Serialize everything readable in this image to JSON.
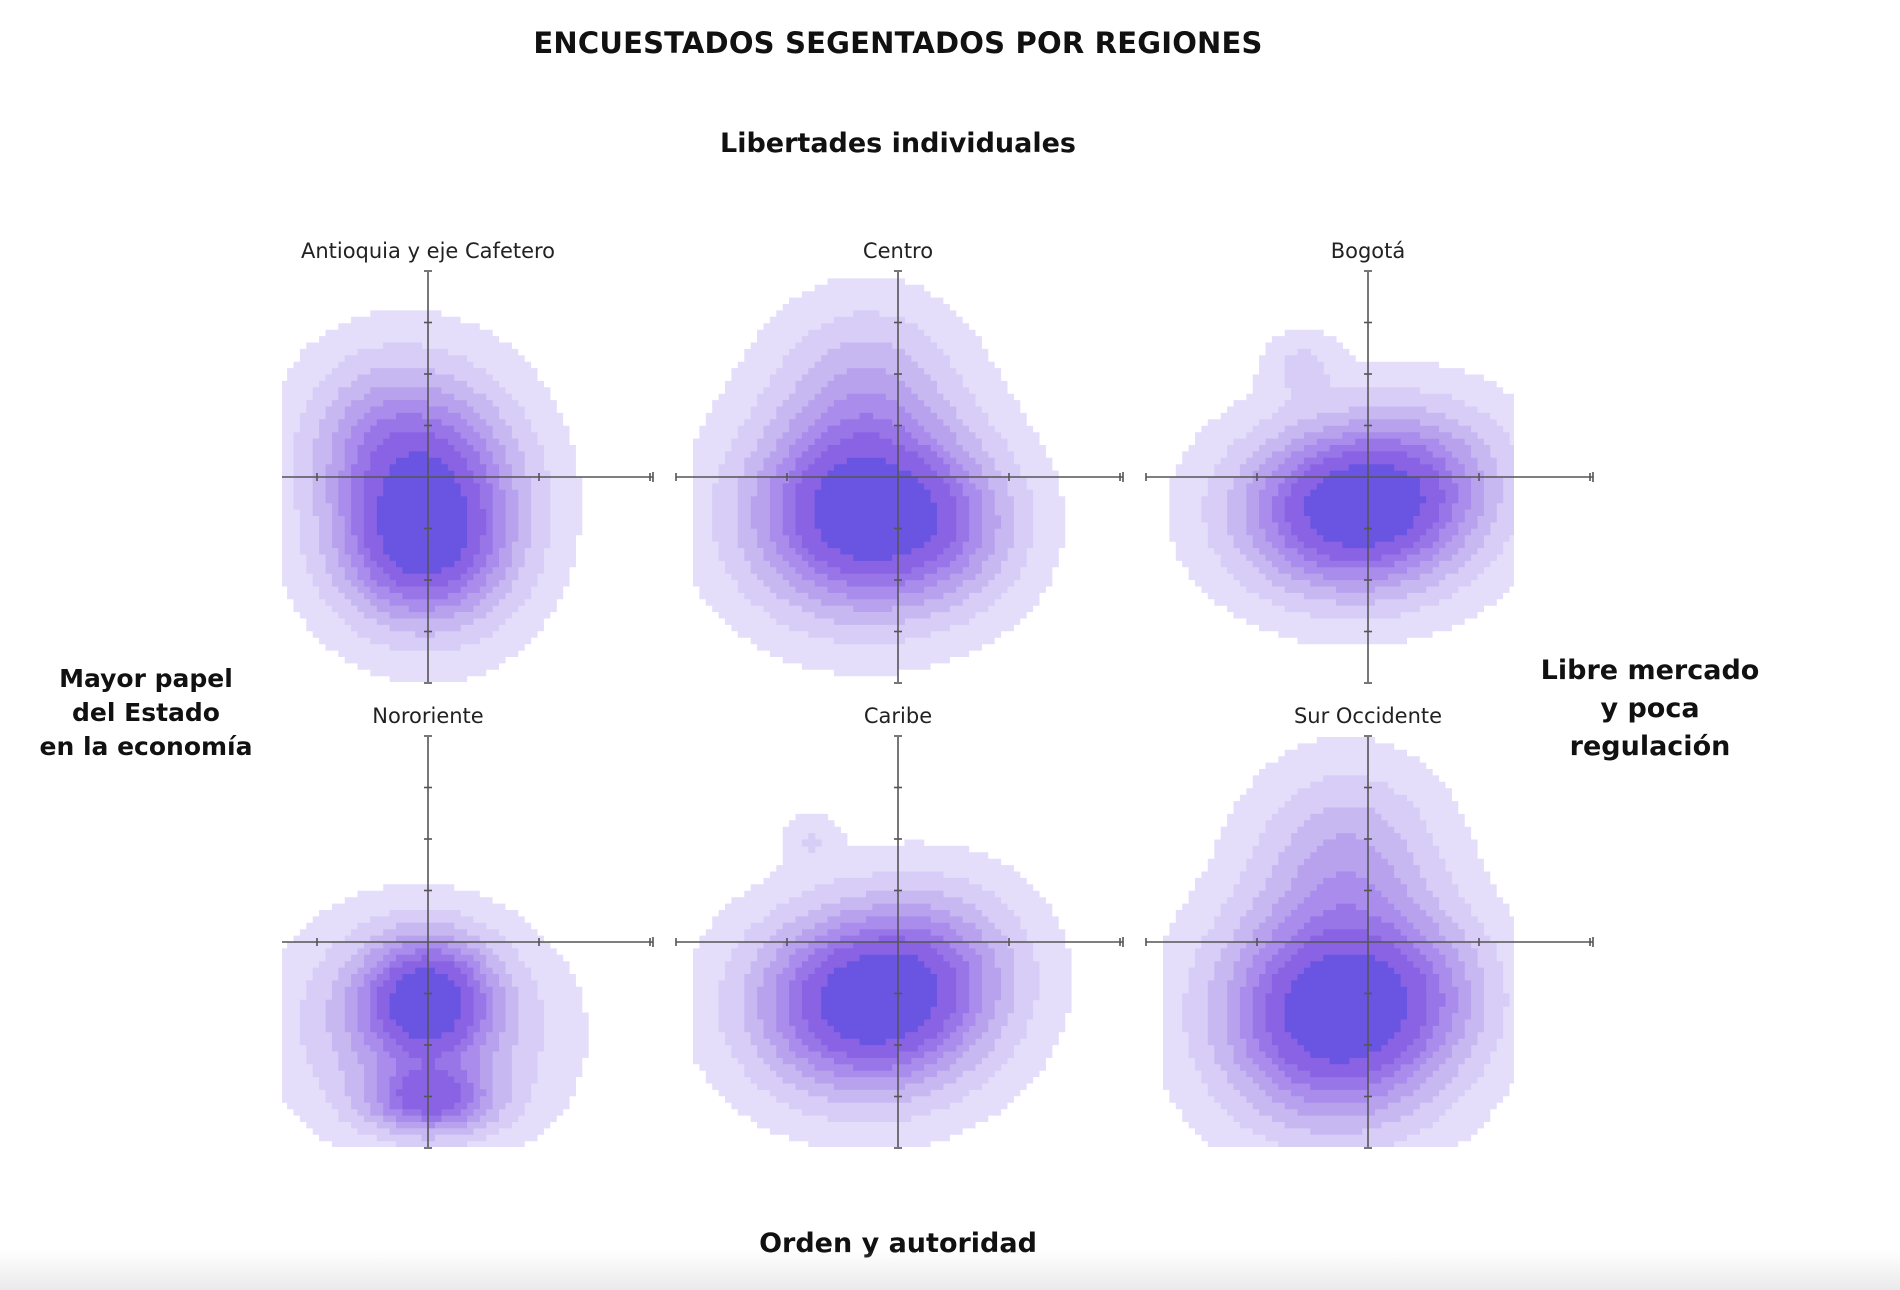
{
  "chart_data": {
    "type": "density_contour_grid",
    "title": "ENCUESTADOS SEGENTADOS POR REGIONES",
    "axis_labels": {
      "top": "Libertades individuales",
      "bottom": "Orden y autoridad",
      "left": "Mayor papel\ndel Estado\nen la economía",
      "right": "Libre mercado\ny poca\nregulación"
    },
    "colors": [
      "#e4defb",
      "#d7cdf6",
      "#c8b8f2",
      "#b8a2ee",
      "#a98ceb",
      "#9876e8",
      "#8a63e4",
      "#6a55e2"
    ],
    "panels": [
      {
        "name": "Antioquia y eje Cafetero",
        "peaks": [
          {
            "x": 0.0,
            "y": -0.45,
            "sx": 1.25,
            "sy": 1.5,
            "w": 1.0
          },
          {
            "x": -0.2,
            "y": -1.6,
            "sx": 1.1,
            "sy": 0.85,
            "w": 0.35
          },
          {
            "x": -1.2,
            "y": 0.9,
            "sx": 1.0,
            "sy": 1.1,
            "w": 0.22
          }
        ]
      },
      {
        "name": "Centro",
        "peaks": [
          {
            "x": -0.7,
            "y": -0.7,
            "sx": 1.5,
            "sy": 1.3,
            "w": 1.0
          },
          {
            "x": -0.6,
            "y": 1.9,
            "sx": 1.2,
            "sy": 1.1,
            "w": 0.28
          },
          {
            "x": 1.1,
            "y": -1.0,
            "sx": 1.0,
            "sy": 1.0,
            "w": 0.22
          }
        ]
      },
      {
        "name": "Bogotá",
        "peaks": [
          {
            "x": -0.3,
            "y": -0.65,
            "sx": 1.5,
            "sy": 1.1,
            "w": 1.0
          },
          {
            "x": -1.3,
            "y": 2.2,
            "sx": 0.5,
            "sy": 0.45,
            "w": 0.16
          },
          {
            "x": 1.2,
            "y": 0.2,
            "sx": 1.2,
            "sy": 1.0,
            "w": 0.25
          }
        ]
      },
      {
        "name": "Nororiente",
        "peaks": [
          {
            "x": 0.0,
            "y": -1.1,
            "sx": 0.85,
            "sy": 0.85,
            "w": 1.0
          },
          {
            "x": 0.05,
            "y": -3.1,
            "sx": 0.85,
            "sy": 0.45,
            "w": 0.75
          },
          {
            "x": -1.2,
            "y": -1.6,
            "sx": 1.2,
            "sy": 1.3,
            "w": 0.3
          },
          {
            "x": 0.9,
            "y": -1.8,
            "sx": 1.3,
            "sy": 1.3,
            "w": 0.28
          }
        ]
      },
      {
        "name": "Caribe",
        "peaks": [
          {
            "x": -0.6,
            "y": -1.2,
            "sx": 1.5,
            "sy": 1.2,
            "w": 1.0
          },
          {
            "x": -1.7,
            "y": 2.0,
            "sx": 0.35,
            "sy": 0.35,
            "w": 0.14
          },
          {
            "x": 0.9,
            "y": -0.3,
            "sx": 1.2,
            "sy": 1.1,
            "w": 0.25
          }
        ]
      },
      {
        "name": "Sur Occidente",
        "peaks": [
          {
            "x": -0.65,
            "y": -1.4,
            "sx": 1.5,
            "sy": 1.4,
            "w": 1.0
          },
          {
            "x": -0.4,
            "y": 1.7,
            "sx": 1.2,
            "sy": 1.2,
            "w": 0.33
          },
          {
            "x": 1.2,
            "y": -0.9,
            "sx": 1.0,
            "sy": 1.0,
            "w": 0.2
          }
        ]
      }
    ]
  }
}
